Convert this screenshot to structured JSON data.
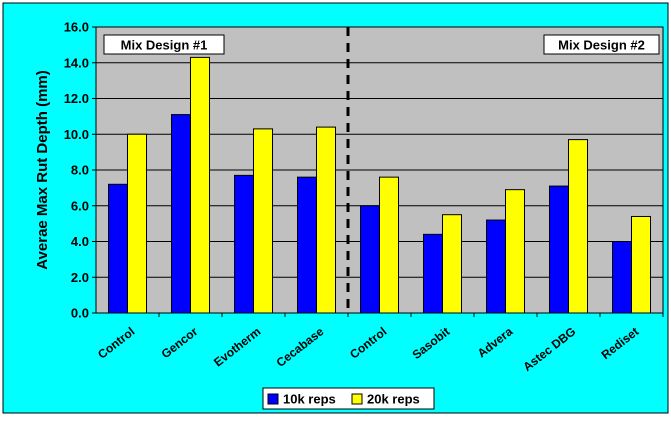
{
  "chart_data": {
    "type": "bar",
    "title": "",
    "xlabel": "",
    "ylabel": "Averae Max Rut Depth (mm)",
    "ylim": [
      0,
      16
    ],
    "yticks": [
      "0.0",
      "2.0",
      "4.0",
      "6.0",
      "8.0",
      "10.0",
      "12.0",
      "14.0",
      "16.0"
    ],
    "grid": true,
    "legend_position": "bottom",
    "categories": [
      "Control",
      "Gencor",
      "Evotherm",
      "Cecabase",
      "Control",
      "Sasobit",
      "Advera",
      "Astec DBG",
      "Rediset"
    ],
    "series": [
      {
        "name": "10k reps",
        "color": "#0000ff",
        "values": [
          7.2,
          11.1,
          7.7,
          7.6,
          6.0,
          4.4,
          5.2,
          7.1,
          4.0
        ]
      },
      {
        "name": "20k reps",
        "color": "#ffff00",
        "values": [
          10.0,
          14.3,
          10.3,
          10.4,
          7.6,
          5.5,
          6.9,
          9.7,
          5.4
        ]
      }
    ],
    "annotations": [
      {
        "text": "Mix Design #1",
        "position": "top-left"
      },
      {
        "text": "Mix Design #2",
        "position": "top-right"
      }
    ],
    "divider_after_index": 3,
    "colors": {
      "background": "#00ffff",
      "plot_area": "#c0c0c0",
      "axis": "#000000"
    }
  }
}
